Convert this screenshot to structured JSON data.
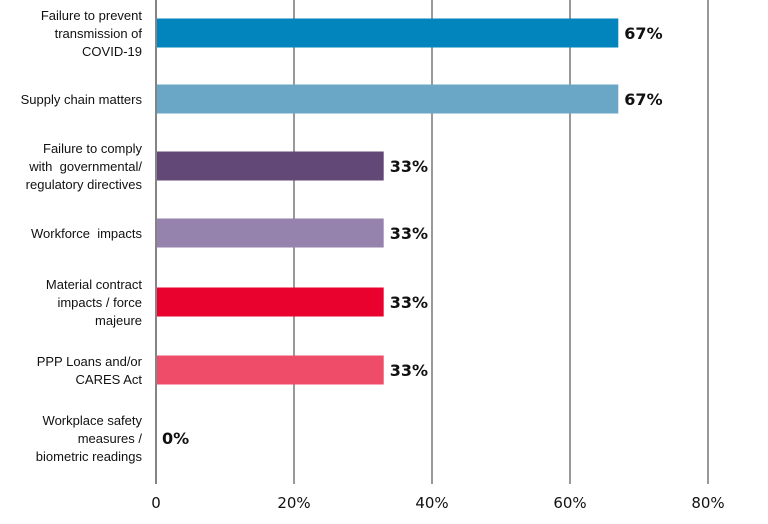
{
  "chart_data": {
    "type": "bar",
    "orientation": "horizontal",
    "title": "",
    "xlabel": "",
    "ylabel": "",
    "xlim": [
      0,
      80
    ],
    "grid": true,
    "legend": "none",
    "x_ticks": [
      {
        "value": 0,
        "label": "0"
      },
      {
        "value": 20,
        "label": "20%"
      },
      {
        "value": 40,
        "label": "40%"
      },
      {
        "value": 60,
        "label": "60%"
      },
      {
        "value": 80,
        "label": "80%"
      }
    ],
    "categories": [
      [
        "Failure to prevent",
        "transmission of",
        "COVID-19"
      ],
      [
        "Supply chain matters"
      ],
      [
        "Failure to comply",
        "with  governmental/",
        "regulatory directives"
      ],
      [
        "Workforce  impacts"
      ],
      [
        "Material contract",
        "impacts / force",
        "majeure"
      ],
      [
        "PPP Loans and/or",
        "CARES Act"
      ],
      [
        "Workplace safety",
        "measures /",
        "biometric readings"
      ]
    ],
    "values": [
      67,
      67,
      33,
      33,
      33,
      33,
      0
    ],
    "value_labels": [
      "67%",
      "67%",
      "33%",
      "33%",
      "33%",
      "33%",
      "0%"
    ],
    "colors": [
      "#0284bc",
      "#6aa6c6",
      "#614876",
      "#9683ad",
      "#e8022d",
      "#ef4c6a",
      "#999999"
    ]
  }
}
